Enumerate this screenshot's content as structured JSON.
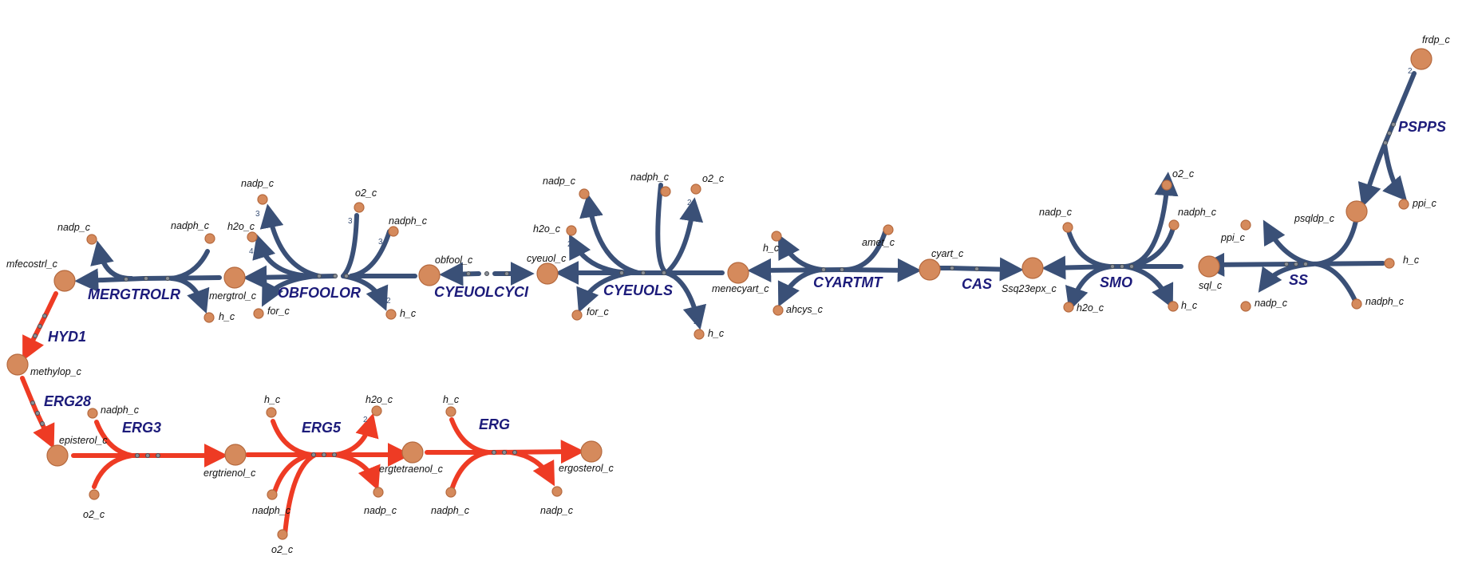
{
  "colors": {
    "upstream": "#3a5077",
    "downstream": "#ee3b24",
    "metabolite": "#d58a5c",
    "reaction_label": "#1c1b7a"
  },
  "reactions": {
    "pspps": "PSPPS",
    "ss": "SS",
    "smo": "SMO",
    "cas": "CAS",
    "cyartmt": "CYARTMT",
    "cyeuols": "CYEUOLS",
    "cyeuolcyci": "CYEUOLCYCI",
    "obfoolor": "OBFOOLOR",
    "mergtrolr": "MERGTROLR",
    "hyd1": "HYD1",
    "erg28": "ERG28",
    "erg3": "ERG3",
    "erg5": "ERG5",
    "erg": "ERG"
  },
  "metabolites": {
    "frdp": "frdp_c",
    "ppi_1": "ppi_c",
    "psqldp": "psqldp_c",
    "ppi_2": "ppi_c",
    "h_ss": "h_c",
    "sql": "sql_c",
    "nadp_ss": "nadp_c",
    "nadph_ss": "nadph_c",
    "o2_smo": "o2_c",
    "nadp_smo": "nadp_c",
    "nadph_smo": "nadph_c",
    "ssq23epx": "Ssq23epx_c",
    "h2o_smo": "h2o_c",
    "h_smo": "h_c",
    "cyart": "cyart_c",
    "h_cyartmt": "h_c",
    "amet": "amet_c",
    "ahcys": "ahcys_c",
    "menecyart": "menecyart_c",
    "nadp_cyeuols": "nadp_c",
    "nadph_cyeuols": "nadph_c",
    "o2_cyeuols": "o2_c",
    "h2o_cyeuols": "h2o_c",
    "cyeuol": "cyeuol_c",
    "for_cyeuols": "for_c",
    "h_cyeuols": "h_c",
    "obfool": "obfool_c",
    "nadp_obf": "nadp_c",
    "o2_obf": "o2_c",
    "nadph_obf": "nadph_c",
    "h2o_obf": "h2o_c",
    "mergtrol": "mergtrol_c",
    "for_obf": "for_c",
    "h_obf": "h_c",
    "nadp_merg": "nadp_c",
    "nadph_merg": "nadph_c",
    "mfecostrl": "mfecostrl_c",
    "h_merg": "h_c",
    "methylop": "methylop_c",
    "episterol": "episterol_c",
    "nadph_erg3": "nadph_c",
    "o2_erg3": "o2_c",
    "ergtrienol": "ergtrienol_c",
    "h_erg5": "h_c",
    "h2o_erg5": "h2o_c",
    "nadph_erg5": "nadph_c",
    "o2_erg5": "o2_c",
    "nadp_erg5": "nadp_c",
    "ergtetraenol": "ergtetraenol_c",
    "h_erg": "h_c",
    "nadph_erg": "nadph_c",
    "ergosterol": "ergosterol_c",
    "nadp_erg": "nadp_c"
  },
  "stoichiometry": {
    "pspps_frdp": "2",
    "cyeuols_o2": "2",
    "cyeuols_h2o": "2",
    "cyeuols_h": "2",
    "obf_nadp": "3",
    "obf_h2o": "4",
    "obf_o2": "3",
    "obf_nadph": "3",
    "obf_h": "2",
    "erg5_h2o": "2"
  }
}
